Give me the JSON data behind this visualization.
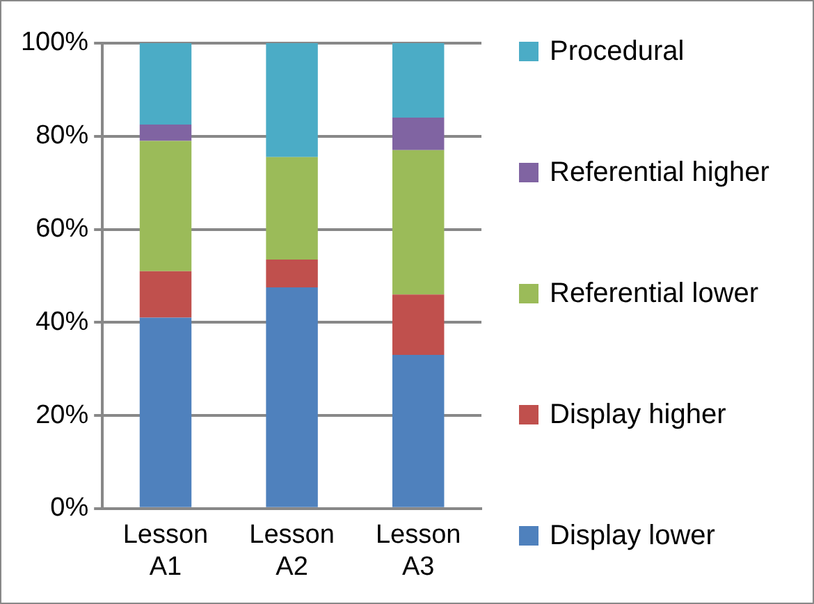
{
  "chart_data": {
    "type": "bar",
    "stacked": true,
    "categories": [
      "Lesson A1",
      "Lesson A2",
      "Lesson A3"
    ],
    "series": [
      {
        "name": "Display lower",
        "color": "#4f81bd",
        "values": [
          41,
          47.5,
          33
        ]
      },
      {
        "name": "Display higher",
        "color": "#c0504d",
        "values": [
          10,
          6,
          13
        ]
      },
      {
        "name": "Referential lower",
        "color": "#9bbb59",
        "values": [
          28,
          22,
          31
        ]
      },
      {
        "name": "Referential higher",
        "color": "#8064a2",
        "values": [
          3.5,
          0,
          7
        ]
      },
      {
        "name": "Procedural",
        "color": "#4bacc6",
        "values": [
          17.5,
          24.5,
          16
        ]
      }
    ],
    "ylim": [
      0,
      100
    ],
    "yticks": [
      {
        "value": 0,
        "label": "0%"
      },
      {
        "value": 20,
        "label": "20%"
      },
      {
        "value": 40,
        "label": "40%"
      },
      {
        "value": 60,
        "label": "60%"
      },
      {
        "value": 80,
        "label": "80%"
      },
      {
        "value": 100,
        "label": "100%"
      }
    ],
    "grid": "y",
    "legend": "right"
  }
}
